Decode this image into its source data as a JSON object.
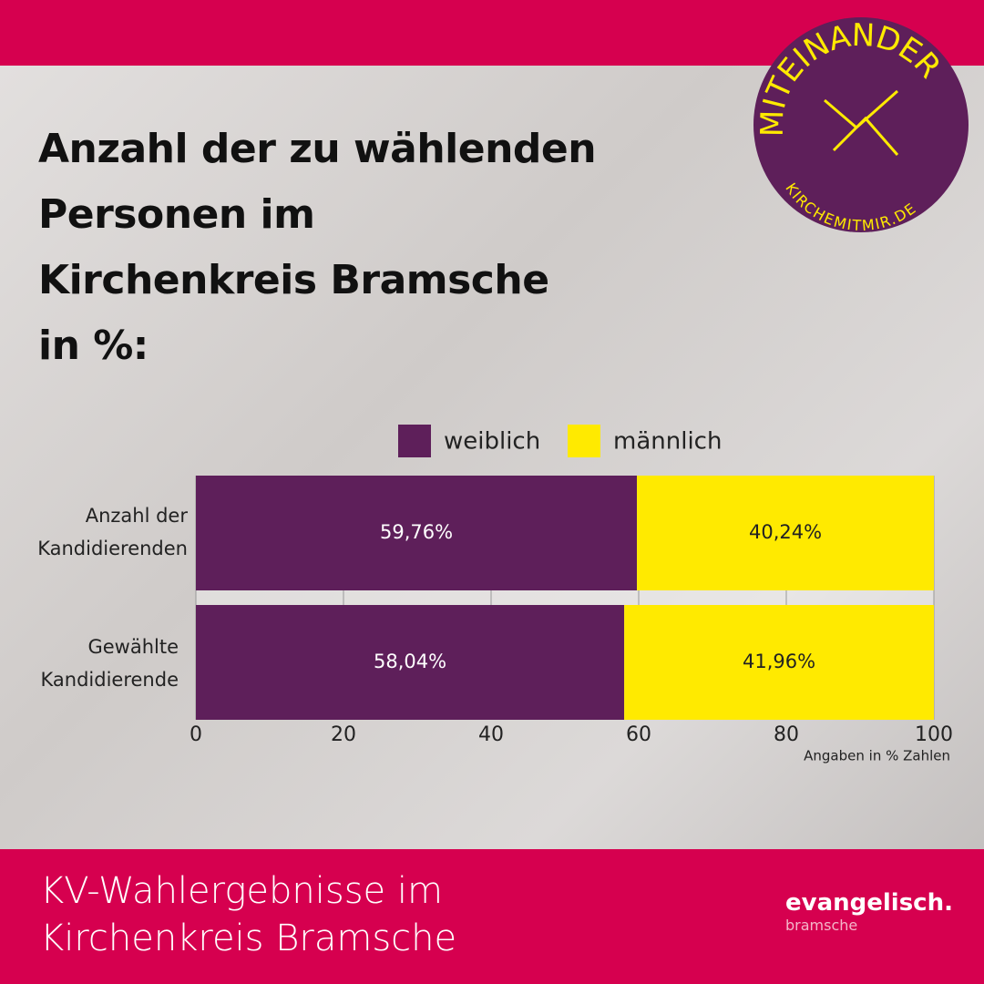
{
  "chart_data": {
    "type": "bar",
    "orientation": "horizontal",
    "stacked": true,
    "title": "Anzahl der zu wählenden Personen im Kirchenkreis Bramsche in %:",
    "categories": [
      "Anzahl der Kandidierenden",
      "Gewählte Kandidierende"
    ],
    "series": [
      {
        "name": "weiblich",
        "color": "#5e1f5a",
        "values": [
          59.76,
          58.04
        ],
        "value_labels": [
          "59,76%",
          "58,04%"
        ]
      },
      {
        "name": "männlich",
        "color": "#ffea00",
        "values": [
          40.24,
          41.96
        ],
        "value_labels": [
          "40,24%",
          "41,96%"
        ]
      }
    ],
    "xlim": [
      0,
      100
    ],
    "xticks": [
      0,
      20,
      40,
      60,
      80,
      100
    ],
    "x_label": "Angaben in % Zahlen",
    "grid": true,
    "legend": "top"
  },
  "badge": {
    "text": "MITEINANDER",
    "url": "KIRCHEMITMIR.DE"
  },
  "footer": {
    "title": "KV-Wahlergebnisse im Kirchenkreis Bramsche",
    "brand": "evangelisch.",
    "brand_sub": "bramsche"
  }
}
